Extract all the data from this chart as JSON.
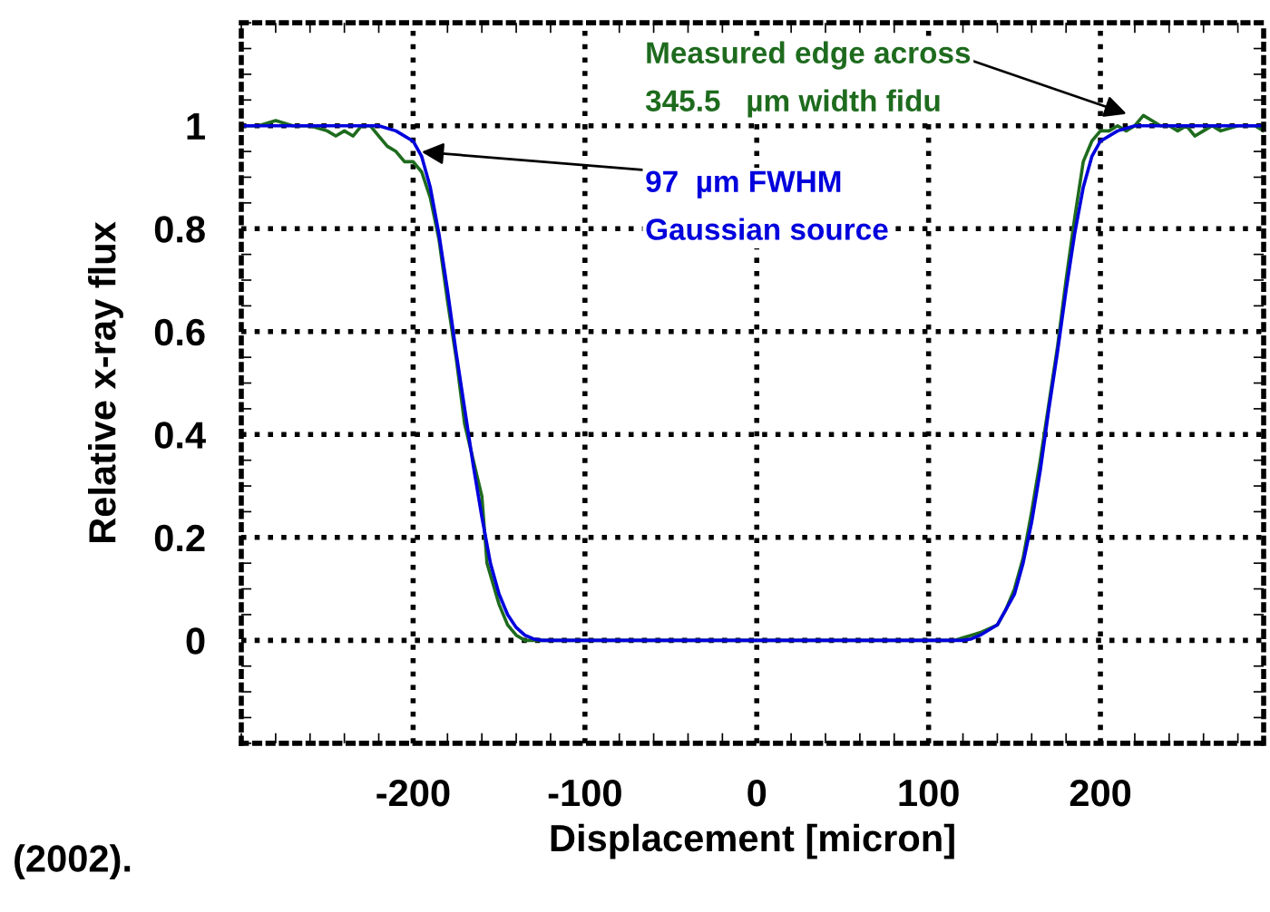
{
  "chart_data": {
    "type": "line",
    "xlabel": "Displacement [micron]",
    "ylabel": "Relative x-ray flux",
    "xlim": [
      -300,
      295
    ],
    "ylim": [
      -0.2,
      1.2
    ],
    "xticks": [
      -200,
      -100,
      0,
      100,
      200
    ],
    "yticks": [
      0,
      0.2,
      0.4,
      0.6,
      0.8,
      1
    ],
    "grid": true,
    "line_style": "solid",
    "marker": "none",
    "series": [
      {
        "color": "#1e6b1e",
        "x": [
          -300,
          -290,
          -280,
          -270,
          -260,
          -250,
          -245,
          -240,
          -235,
          -230,
          -225,
          -220,
          -215,
          -210,
          -205,
          -200,
          -195,
          -190,
          -185,
          -180,
          -175,
          -170,
          -165,
          -160,
          -157,
          -150,
          -145,
          -140,
          -135,
          0,
          115,
          120,
          125,
          130,
          140,
          145,
          150,
          155,
          160,
          165,
          170,
          175,
          180,
          185,
          190,
          195,
          200,
          205,
          210,
          215,
          220,
          225,
          230,
          235,
          240,
          245,
          250,
          255,
          260,
          265,
          270,
          280,
          290,
          295
        ],
        "values": [
          1.0,
          1.0,
          1.01,
          1.0,
          1.0,
          0.99,
          0.98,
          0.99,
          0.98,
          1.0,
          1.0,
          0.98,
          0.96,
          0.95,
          0.93,
          0.93,
          0.91,
          0.86,
          0.78,
          0.66,
          0.55,
          0.42,
          0.35,
          0.28,
          0.15,
          0.07,
          0.03,
          0.01,
          0,
          0,
          0,
          0.005,
          0.01,
          0.015,
          0.03,
          0.06,
          0.1,
          0.16,
          0.25,
          0.35,
          0.46,
          0.57,
          0.7,
          0.82,
          0.93,
          0.97,
          0.99,
          0.99,
          1.0,
          0.99,
          1.0,
          1.02,
          1.01,
          1.0,
          1.0,
          0.99,
          1.0,
          0.98,
          0.99,
          1.0,
          0.99,
          1.0,
          1.0,
          0.99
        ]
      },
      {
        "color": "#0000dd",
        "x": [
          -300,
          -220,
          -210,
          -200,
          -195,
          -190,
          -185,
          -180,
          -175,
          -170,
          -165,
          -160,
          -155,
          -150,
          -145,
          -140,
          -135,
          -130,
          -125,
          0,
          120,
          125,
          130,
          140,
          145,
          150,
          155,
          160,
          165,
          170,
          175,
          180,
          185,
          190,
          195,
          200,
          210,
          220,
          295
        ],
        "values": [
          1,
          1,
          0.99,
          0.97,
          0.94,
          0.88,
          0.79,
          0.68,
          0.56,
          0.45,
          0.34,
          0.24,
          0.15,
          0.09,
          0.05,
          0.025,
          0.01,
          0.003,
          0,
          0,
          0,
          0.003,
          0.01,
          0.03,
          0.06,
          0.09,
          0.15,
          0.23,
          0.33,
          0.45,
          0.56,
          0.68,
          0.79,
          0.88,
          0.94,
          0.97,
          0.99,
          1,
          1
        ]
      }
    ],
    "annotations": [
      {
        "text": "Measured edge across\n345.5   µm width fidu",
        "x": 218,
        "y": 1.02
      },
      {
        "text": "97  µm FWHM\nGaussian source",
        "x": -198,
        "y": 0.95
      },
      "(2002)."
    ]
  }
}
